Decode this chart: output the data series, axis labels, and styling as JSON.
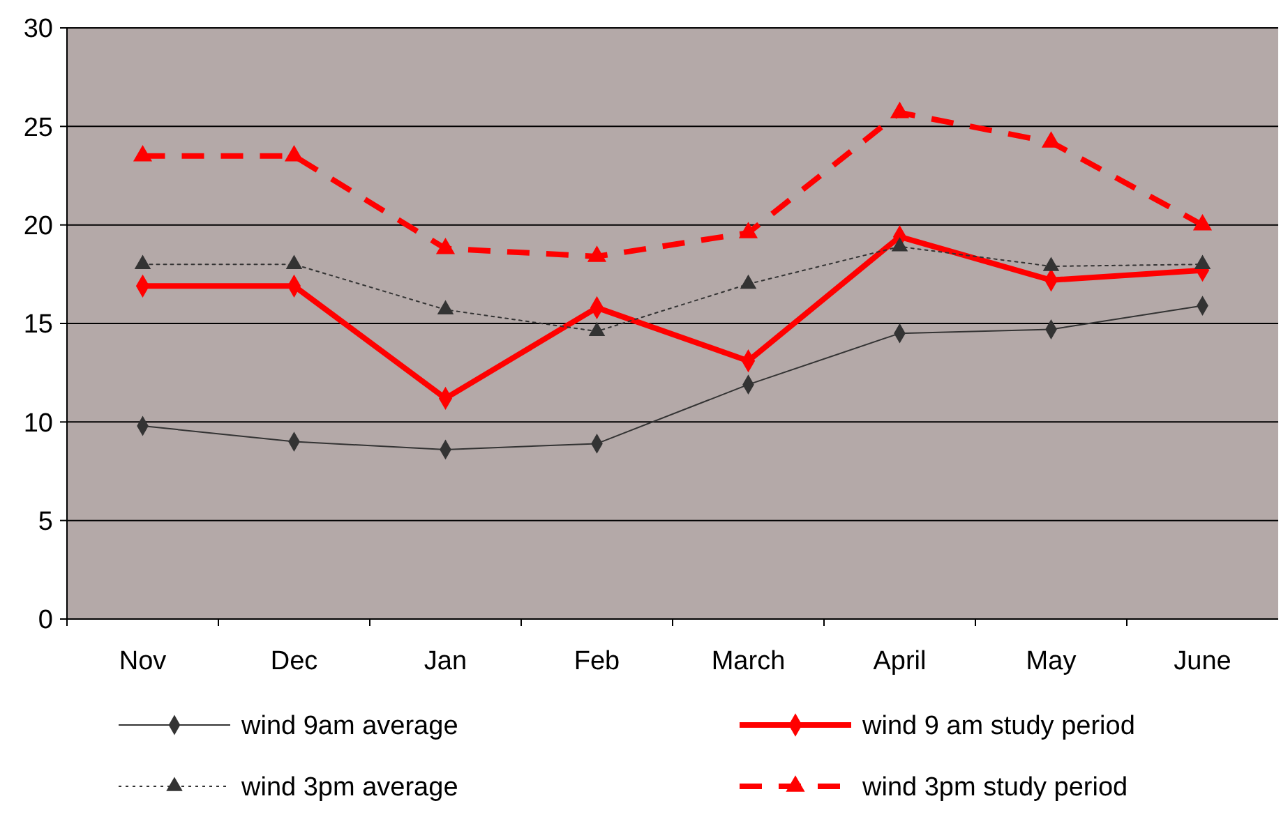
{
  "chart_data": {
    "type": "line",
    "categories": [
      "Nov",
      "Dec",
      "Jan",
      "Feb",
      "March",
      "April",
      "May",
      "June"
    ],
    "ylim": [
      0,
      30
    ],
    "yticks": [
      0,
      5,
      10,
      15,
      20,
      25,
      30
    ],
    "grid": "y",
    "legend": "bottom",
    "series": [
      {
        "name": "wind 9am average",
        "color": "#333333",
        "marker": "diamond",
        "line_style": "solid",
        "values": [
          9.8,
          9.0,
          8.6,
          8.9,
          11.9,
          14.5,
          14.7,
          15.9
        ]
      },
      {
        "name": "wind 9 am study period",
        "color": "#ff0000",
        "marker": "diamond",
        "line_style": "solid",
        "values": [
          16.9,
          16.9,
          11.2,
          15.8,
          13.1,
          19.4,
          17.2,
          17.7
        ]
      },
      {
        "name": "wind 3pm average",
        "color": "#333333",
        "marker": "triangle",
        "line_style": "dotted",
        "values": [
          18.0,
          18.0,
          15.7,
          14.6,
          17.0,
          18.9,
          17.9,
          18.0
        ]
      },
      {
        "name": "wind 3pm study period",
        "color": "#ff0000",
        "marker": "triangle",
        "line_style": "dashed",
        "values": [
          23.5,
          23.5,
          18.8,
          18.4,
          19.6,
          25.7,
          24.2,
          20.0
        ]
      }
    ]
  }
}
